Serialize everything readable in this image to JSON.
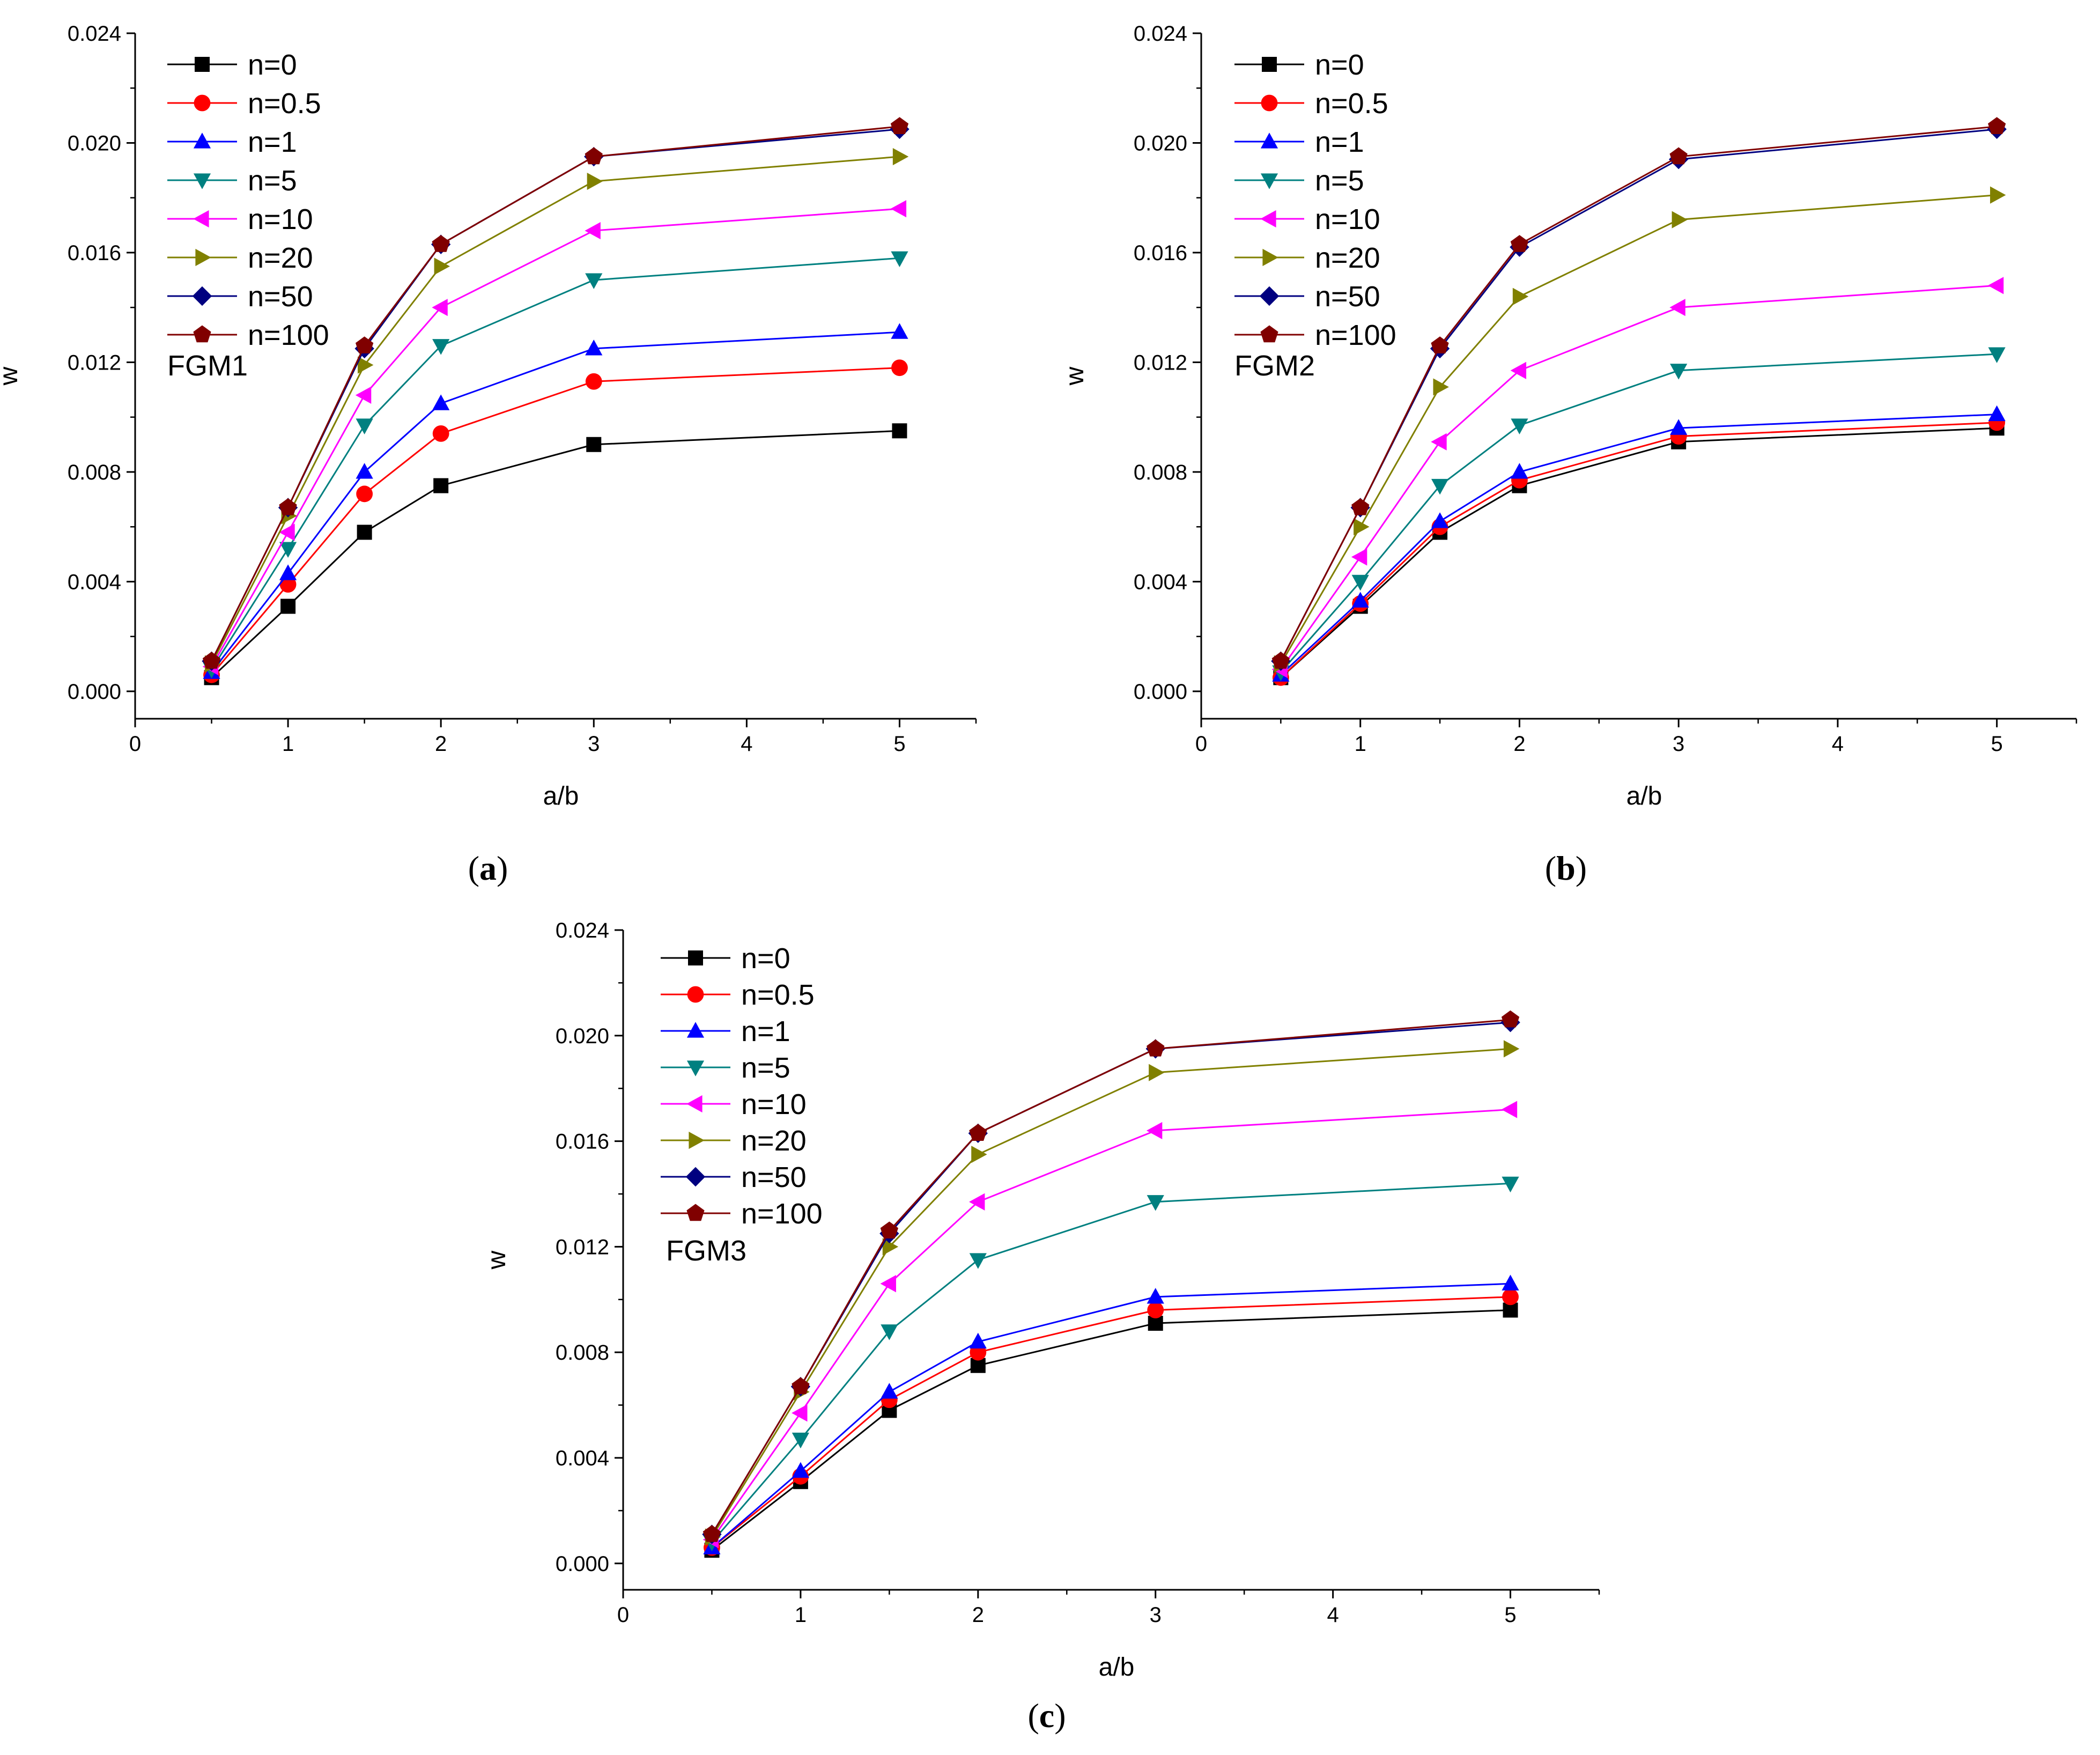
{
  "chart_data": [
    {
      "type": "line",
      "panel_label": "FGM1",
      "caption_open": "(",
      "caption_letter": "a",
      "caption_close": ")",
      "xlabel": "a/b",
      "ylabel": "w",
      "xlim": [
        0,
        5.5
      ],
      "ylim": [
        -0.001,
        0.024
      ],
      "xticks": [
        "0",
        "1",
        "2",
        "3",
        "4",
        "5"
      ],
      "yticks": [
        "0.000",
        "0.004",
        "0.008",
        "0.012",
        "0.016",
        "0.020",
        "0.024"
      ],
      "x": [
        0.5,
        1,
        1.5,
        2,
        3,
        5
      ],
      "series": [
        {
          "name": "n=0",
          "values": [
            0.0005,
            0.0031,
            0.0058,
            0.0075,
            0.009,
            0.0095
          ]
        },
        {
          "name": "n=0.5",
          "values": [
            0.0006,
            0.0039,
            0.0072,
            0.0094,
            0.0113,
            0.0118
          ]
        },
        {
          "name": "n=1",
          "values": [
            0.0007,
            0.0043,
            0.008,
            0.0105,
            0.0125,
            0.0131
          ]
        },
        {
          "name": "n=5",
          "values": [
            0.0008,
            0.0052,
            0.0097,
            0.0126,
            0.015,
            0.0158
          ]
        },
        {
          "name": "n=10",
          "values": [
            0.0009,
            0.0058,
            0.0108,
            0.014,
            0.0168,
            0.0176
          ]
        },
        {
          "name": "n=20",
          "values": [
            0.001,
            0.0064,
            0.0119,
            0.0155,
            0.0186,
            0.0195
          ]
        },
        {
          "name": "n=50",
          "values": [
            0.0011,
            0.0067,
            0.0125,
            0.0163,
            0.0195,
            0.0205
          ]
        },
        {
          "name": "n=100",
          "values": [
            0.0011,
            0.0067,
            0.0126,
            0.0163,
            0.0195,
            0.0206
          ]
        }
      ]
    },
    {
      "type": "line",
      "panel_label": "FGM2",
      "caption_open": "(",
      "caption_letter": "b",
      "caption_close": ")",
      "xlabel": "a/b",
      "ylabel": "w",
      "xlim": [
        0,
        5.5
      ],
      "ylim": [
        -0.001,
        0.024
      ],
      "xticks": [
        "0",
        "1",
        "2",
        "3",
        "4",
        "5"
      ],
      "yticks": [
        "0.000",
        "0.004",
        "0.008",
        "0.012",
        "0.016",
        "0.020",
        "0.024"
      ],
      "x": [
        0.5,
        1,
        1.5,
        2,
        3,
        5
      ],
      "series": [
        {
          "name": "n=0",
          "values": [
            0.0005,
            0.0031,
            0.0058,
            0.0075,
            0.0091,
            0.0096
          ]
        },
        {
          "name": "n=0.5",
          "values": [
            0.0005,
            0.0032,
            0.006,
            0.0077,
            0.0093,
            0.0098
          ]
        },
        {
          "name": "n=1",
          "values": [
            0.0006,
            0.0033,
            0.0062,
            0.008,
            0.0096,
            0.0101
          ]
        },
        {
          "name": "n=5",
          "values": [
            0.0007,
            0.004,
            0.0075,
            0.0097,
            0.0117,
            0.0123
          ]
        },
        {
          "name": "n=10",
          "values": [
            0.0008,
            0.0049,
            0.0091,
            0.0117,
            0.014,
            0.0148
          ]
        },
        {
          "name": "n=20",
          "values": [
            0.001,
            0.006,
            0.0111,
            0.0144,
            0.0172,
            0.0181
          ]
        },
        {
          "name": "n=50",
          "values": [
            0.0011,
            0.0067,
            0.0125,
            0.0162,
            0.0194,
            0.0205
          ]
        },
        {
          "name": "n=100",
          "values": [
            0.0011,
            0.0067,
            0.0126,
            0.0163,
            0.0195,
            0.0206
          ]
        }
      ]
    },
    {
      "type": "line",
      "panel_label": "FGM3",
      "caption_open": "(",
      "caption_letter": "c",
      "caption_close": ")",
      "xlabel": "a/b",
      "ylabel": "w",
      "xlim": [
        0,
        5.5
      ],
      "ylim": [
        -0.001,
        0.024
      ],
      "xticks": [
        "0",
        "1",
        "2",
        "3",
        "4",
        "5"
      ],
      "yticks": [
        "0.000",
        "0.004",
        "0.008",
        "0.012",
        "0.016",
        "0.020",
        "0.024"
      ],
      "x": [
        0.5,
        1,
        1.5,
        2,
        3,
        5
      ],
      "series": [
        {
          "name": "n=0",
          "values": [
            0.0005,
            0.0031,
            0.0058,
            0.0075,
            0.0091,
            0.0096
          ]
        },
        {
          "name": "n=0.5",
          "values": [
            0.0006,
            0.0033,
            0.0062,
            0.008,
            0.0096,
            0.0101
          ]
        },
        {
          "name": "n=1",
          "values": [
            0.0006,
            0.0035,
            0.0065,
            0.0084,
            0.0101,
            0.0106
          ]
        },
        {
          "name": "n=5",
          "values": [
            0.0008,
            0.0047,
            0.0088,
            0.0115,
            0.0137,
            0.0144
          ]
        },
        {
          "name": "n=10",
          "values": [
            0.0009,
            0.0057,
            0.0106,
            0.0137,
            0.0164,
            0.0172
          ]
        },
        {
          "name": "n=20",
          "values": [
            0.001,
            0.0065,
            0.012,
            0.0155,
            0.0186,
            0.0195
          ]
        },
        {
          "name": "n=50",
          "values": [
            0.0011,
            0.0067,
            0.0125,
            0.0163,
            0.0195,
            0.0205
          ]
        },
        {
          "name": "n=100",
          "values": [
            0.0011,
            0.0067,
            0.0126,
            0.0163,
            0.0195,
            0.0206
          ]
        }
      ]
    }
  ],
  "series_style": [
    {
      "color": "#000000",
      "marker": "square"
    },
    {
      "color": "#ff0000",
      "marker": "circle"
    },
    {
      "color": "#0000ff",
      "marker": "triangle-up"
    },
    {
      "color": "#008080",
      "marker": "triangle-down"
    },
    {
      "color": "#ff00ff",
      "marker": "triangle-left"
    },
    {
      "color": "#808000",
      "marker": "triangle-right"
    },
    {
      "color": "#000080",
      "marker": "diamond"
    },
    {
      "color": "#800000",
      "marker": "pentagon"
    }
  ]
}
